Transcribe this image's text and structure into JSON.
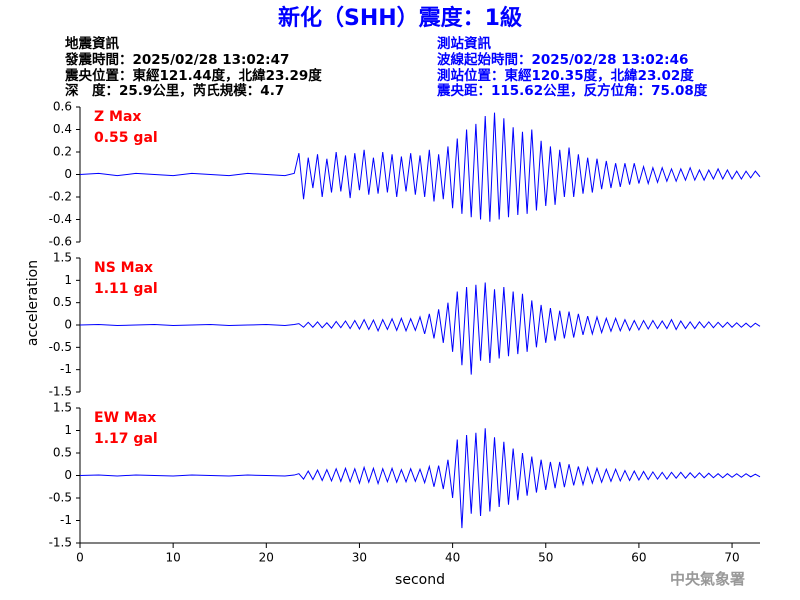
{
  "header": {
    "title": "新化（SHH）震度：1級",
    "quake_info": [
      "地震資訊",
      "發震時間：2025/02/28 13:02:47",
      "震央位置：東經121.44度，北緯23.29度",
      "深　度：25.9公里，芮氏規模：4.7"
    ],
    "station_info": [
      "測站資訊",
      "波線起始時間：2025/02/28 13:02:46",
      "測站位置：東經120.35度，北緯23.02度",
      "震央距：115.62公里，反方位角：75.08度"
    ]
  },
  "ylabel": "acceleration",
  "footer": "中央氣象署",
  "chart_data": [
    {
      "type": "line",
      "annotation": [
        "Z Max",
        "0.55 gal"
      ],
      "color": "#0000ff",
      "xlim": [
        0,
        73
      ],
      "ylim": [
        -0.6,
        0.6
      ],
      "yticks": [
        -0.6,
        -0.4,
        -0.2,
        0,
        0.2,
        0.4,
        0.6
      ],
      "x": [
        0,
        2,
        4,
        6,
        8,
        10,
        12,
        14,
        16,
        18,
        20,
        22,
        23,
        23.5,
        24,
        24.5,
        25,
        25.5,
        26,
        26.5,
        27,
        27.5,
        28,
        28.5,
        29,
        29.5,
        30,
        30.5,
        31,
        31.5,
        32,
        32.5,
        33,
        33.5,
        34,
        34.5,
        35,
        35.5,
        36,
        36.5,
        37,
        37.5,
        38,
        38.5,
        39,
        39.5,
        40,
        40.5,
        41,
        41.5,
        42,
        42.5,
        43,
        43.5,
        44,
        44.5,
        45,
        45.5,
        46,
        46.5,
        47,
        47.5,
        48,
        48.5,
        49,
        49.5,
        50,
        50.5,
        51,
        51.5,
        52,
        52.5,
        53,
        53.5,
        54,
        54.5,
        55,
        55.5,
        56,
        56.5,
        57,
        57.5,
        58,
        58.5,
        59,
        59.5,
        60,
        60.5,
        61,
        61.5,
        62,
        62.5,
        63,
        63.5,
        64,
        64.5,
        65,
        65.5,
        66,
        66.5,
        67,
        67.5,
        68,
        68.5,
        69,
        69.5,
        70,
        70.5,
        71,
        71.5,
        72,
        72.5,
        73
      ],
      "values": [
        0,
        0.01,
        -0.01,
        0.01,
        0,
        -0.01,
        0.01,
        0,
        -0.01,
        0.01,
        0,
        -0.01,
        0.01,
        0.19,
        -0.22,
        0.15,
        -0.12,
        0.18,
        -0.2,
        0.14,
        -0.16,
        0.2,
        -0.15,
        0.17,
        -0.21,
        0.19,
        -0.14,
        0.22,
        -0.18,
        0.15,
        -0.17,
        0.2,
        -0.16,
        0.18,
        -0.2,
        0.16,
        -0.15,
        0.19,
        -0.18,
        0.17,
        -0.2,
        0.22,
        -0.24,
        0.18,
        -0.22,
        0.25,
        -0.3,
        0.32,
        -0.35,
        0.4,
        -0.38,
        0.45,
        -0.4,
        0.52,
        -0.42,
        0.55,
        -0.4,
        0.5,
        -0.38,
        0.42,
        -0.36,
        0.38,
        -0.35,
        0.4,
        -0.32,
        0.3,
        -0.28,
        0.25,
        -0.27,
        0.22,
        -0.2,
        0.24,
        -0.2,
        0.18,
        -0.17,
        0.15,
        -0.16,
        0.14,
        -0.13,
        0.12,
        -0.12,
        0.1,
        -0.11,
        0.1,
        -0.09,
        0.1,
        -0.08,
        0.07,
        -0.08,
        0.06,
        -0.07,
        0.06,
        -0.06,
        0.05,
        -0.06,
        0.05,
        -0.05,
        0.06,
        -0.05,
        0.04,
        -0.05,
        0.04,
        -0.04,
        0.05,
        -0.04,
        0.04,
        -0.04,
        0.03,
        -0.04,
        0.03,
        -0.03,
        0.03,
        -0.02
      ]
    },
    {
      "type": "line",
      "annotation": [
        "NS Max",
        "1.11 gal"
      ],
      "color": "#0000ff",
      "xlim": [
        0,
        73
      ],
      "ylim": [
        -1.5,
        1.5
      ],
      "yticks": [
        -1.5,
        -1,
        -0.5,
        0,
        0.5,
        1,
        1.5
      ],
      "x": [
        0,
        2,
        4,
        6,
        8,
        10,
        12,
        14,
        16,
        18,
        20,
        22,
        23,
        23.5,
        24,
        24.5,
        25,
        25.5,
        26,
        26.5,
        27,
        27.5,
        28,
        28.5,
        29,
        29.5,
        30,
        30.5,
        31,
        31.5,
        32,
        32.5,
        33,
        33.5,
        34,
        34.5,
        35,
        35.5,
        36,
        36.5,
        37,
        37.5,
        38,
        38.5,
        39,
        39.5,
        40,
        40.5,
        41,
        41.5,
        42,
        42.5,
        43,
        43.5,
        44,
        44.5,
        45,
        45.5,
        46,
        46.5,
        47,
        47.5,
        48,
        48.5,
        49,
        49.5,
        50,
        50.5,
        51,
        51.5,
        52,
        52.5,
        53,
        53.5,
        54,
        54.5,
        55,
        55.5,
        56,
        56.5,
        57,
        57.5,
        58,
        58.5,
        59,
        59.5,
        60,
        60.5,
        61,
        61.5,
        62,
        62.5,
        63,
        63.5,
        64,
        64.5,
        65,
        65.5,
        66,
        66.5,
        67,
        67.5,
        68,
        68.5,
        69,
        69.5,
        70,
        70.5,
        71,
        71.5,
        72,
        72.5,
        73
      ],
      "values": [
        0,
        0.01,
        -0.01,
        0,
        0.01,
        -0.01,
        0,
        0.01,
        -0.01,
        0,
        0.01,
        -0.01,
        0.01,
        0.03,
        -0.05,
        0.06,
        -0.05,
        0.07,
        -0.06,
        0.05,
        -0.07,
        0.08,
        -0.06,
        0.09,
        -0.08,
        0.1,
        -0.09,
        0.12,
        -0.1,
        0.11,
        -0.13,
        0.12,
        -0.1,
        0.14,
        -0.12,
        0.15,
        -0.13,
        0.14,
        -0.12,
        0.18,
        -0.2,
        0.25,
        -0.3,
        0.35,
        -0.4,
        0.5,
        -0.6,
        0.75,
        -0.9,
        0.85,
        -1.11,
        0.9,
        -0.8,
        0.95,
        -0.85,
        0.8,
        -0.75,
        0.85,
        -0.7,
        0.75,
        -0.65,
        0.7,
        -0.6,
        0.55,
        -0.5,
        0.45,
        -0.4,
        0.38,
        -0.35,
        0.32,
        -0.3,
        0.3,
        -0.28,
        0.25,
        -0.22,
        0.2,
        -0.2,
        0.18,
        -0.17,
        0.15,
        -0.14,
        0.15,
        -0.13,
        0.12,
        -0.12,
        0.1,
        -0.11,
        0.1,
        -0.09,
        0.1,
        -0.08,
        0.09,
        -0.08,
        0.12,
        -0.1,
        0.09,
        -0.08,
        0.07,
        -0.08,
        0.07,
        -0.06,
        0.07,
        -0.06,
        0.06,
        -0.05,
        0.06,
        -0.05,
        0.05,
        -0.05,
        0.04,
        -0.05,
        0.04,
        -0.03
      ]
    },
    {
      "type": "line",
      "annotation": [
        "EW Max",
        "1.17 gal"
      ],
      "color": "#0000ff",
      "xlabel": "second",
      "xlim": [
        0,
        73
      ],
      "xticks": [
        0,
        10,
        20,
        30,
        40,
        50,
        60,
        70
      ],
      "ylim": [
        -1.5,
        1.5
      ],
      "yticks": [
        -1.5,
        -1,
        -0.5,
        0,
        0.5,
        1,
        1.5
      ],
      "x": [
        0,
        2,
        4,
        6,
        8,
        10,
        12,
        14,
        16,
        18,
        20,
        22,
        23,
        23.5,
        24,
        24.5,
        25,
        25.5,
        26,
        26.5,
        27,
        27.5,
        28,
        28.5,
        29,
        29.5,
        30,
        30.5,
        31,
        31.5,
        32,
        32.5,
        33,
        33.5,
        34,
        34.5,
        35,
        35.5,
        36,
        36.5,
        37,
        37.5,
        38,
        38.5,
        39,
        39.5,
        40,
        40.5,
        41,
        41.5,
        42,
        42.5,
        43,
        43.5,
        44,
        44.5,
        45,
        45.5,
        46,
        46.5,
        47,
        47.5,
        48,
        48.5,
        49,
        49.5,
        50,
        50.5,
        51,
        51.5,
        52,
        52.5,
        53,
        53.5,
        54,
        54.5,
        55,
        55.5,
        56,
        56.5,
        57,
        57.5,
        58,
        58.5,
        59,
        59.5,
        60,
        60.5,
        61,
        61.5,
        62,
        62.5,
        63,
        63.5,
        64,
        64.5,
        65,
        65.5,
        66,
        66.5,
        67,
        67.5,
        68,
        68.5,
        69,
        69.5,
        70,
        70.5,
        71,
        71.5,
        72,
        72.5,
        73
      ],
      "values": [
        0,
        0.01,
        -0.01,
        0.01,
        0,
        -0.01,
        0.01,
        0,
        -0.01,
        0.01,
        0,
        -0.01,
        0.01,
        0.04,
        -0.08,
        0.1,
        -0.09,
        0.12,
        -0.11,
        0.13,
        -0.12,
        0.15,
        -0.13,
        0.16,
        -0.14,
        0.15,
        -0.17,
        0.18,
        -0.15,
        0.16,
        -0.18,
        0.15,
        -0.14,
        0.16,
        -0.15,
        0.13,
        -0.14,
        0.15,
        -0.13,
        0.14,
        -0.16,
        0.2,
        -0.25,
        0.22,
        -0.3,
        0.35,
        -0.5,
        0.8,
        -1.17,
        0.9,
        -0.85,
        0.95,
        -0.9,
        1.05,
        -0.8,
        0.85,
        -0.7,
        0.75,
        -0.65,
        0.6,
        -0.55,
        0.5,
        -0.45,
        0.42,
        -0.38,
        0.35,
        -0.32,
        0.3,
        -0.28,
        0.3,
        -0.26,
        0.25,
        -0.22,
        0.2,
        -0.2,
        0.18,
        -0.17,
        0.16,
        -0.15,
        0.14,
        -0.13,
        0.14,
        -0.12,
        0.11,
        -0.11,
        0.1,
        -0.1,
        0.09,
        -0.09,
        0.08,
        -0.08,
        0.07,
        -0.08,
        0.07,
        -0.06,
        0.07,
        -0.06,
        0.06,
        -0.05,
        0.06,
        -0.05,
        0.05,
        -0.05,
        0.04,
        -0.05,
        0.04,
        -0.04,
        0.04,
        -0.04,
        0.04,
        -0.03,
        0.03,
        -0.03
      ]
    }
  ]
}
